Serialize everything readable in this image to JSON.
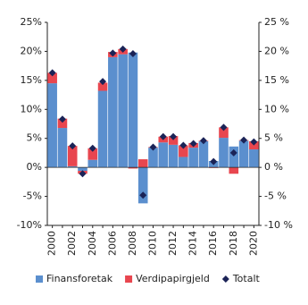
{
  "chart_data": {
    "type": "stacked-bar",
    "categories": [
      "2000",
      null,
      "2002",
      null,
      "2004",
      null,
      "2006",
      null,
      "2008",
      null,
      "2010",
      null,
      "2012",
      null,
      "2014",
      null,
      "2016",
      null,
      "2018",
      null,
      "2020"
    ],
    "series": [
      {
        "name": "Finansforetak",
        "color": "#5b8fce",
        "kind": "bar",
        "values": [
          14.5,
          6.8,
          0.2,
          -0.6,
          1.3,
          13.2,
          19.0,
          19.5,
          19.8,
          -6.2,
          3.4,
          4.3,
          3.9,
          1.8,
          3.4,
          4.5,
          1.1,
          5.1,
          3.6,
          4.6,
          3.1
        ]
      },
      {
        "name": "Verdipapirgjeld",
        "color": "#e8464f",
        "kind": "bar",
        "values": [
          1.8,
          1.6,
          3.5,
          -0.5,
          2.0,
          1.4,
          0.9,
          0.9,
          -0.2,
          1.4,
          0.1,
          1.0,
          1.5,
          2.0,
          0.8,
          0.1,
          -0.1,
          1.8,
          -1.1,
          0.1,
          1.4
        ]
      },
      {
        "name": "Totalt",
        "color": "#1b2357",
        "kind": "diamond",
        "values": [
          16.3,
          8.3,
          3.7,
          -1.1,
          3.3,
          14.8,
          19.7,
          20.4,
          19.6,
          -4.8,
          3.5,
          5.3,
          5.3,
          3.8,
          4.1,
          4.6,
          1.0,
          6.9,
          2.5,
          4.7,
          4.4
        ]
      }
    ],
    "ylim": [
      -10,
      25
    ],
    "yticks": [
      {
        "value": -10,
        "label": "-10%"
      },
      {
        "value": -5,
        "label": "-5%"
      },
      {
        "value": 0,
        "label": "0%"
      },
      {
        "value": 5,
        "label": "5%"
      },
      {
        "value": 10,
        "label": "10%"
      },
      {
        "value": 15,
        "label": "15%"
      },
      {
        "value": 20,
        "label": "20%"
      },
      {
        "value": 25,
        "label": "25%"
      }
    ],
    "y2lim": [
      -10,
      25
    ],
    "y2ticks": [
      {
        "value": -10,
        "label": "-10 %"
      },
      {
        "value": -5,
        "label": "-5 %"
      },
      {
        "value": 0,
        "label": "0 %"
      },
      {
        "value": 5,
        "label": "5 %"
      },
      {
        "value": 10,
        "label": "10 %"
      },
      {
        "value": 15,
        "label": "15 %"
      },
      {
        "value": 20,
        "label": "20 %"
      },
      {
        "value": 25,
        "label": "25 %"
      }
    ],
    "legend": "bottom"
  }
}
